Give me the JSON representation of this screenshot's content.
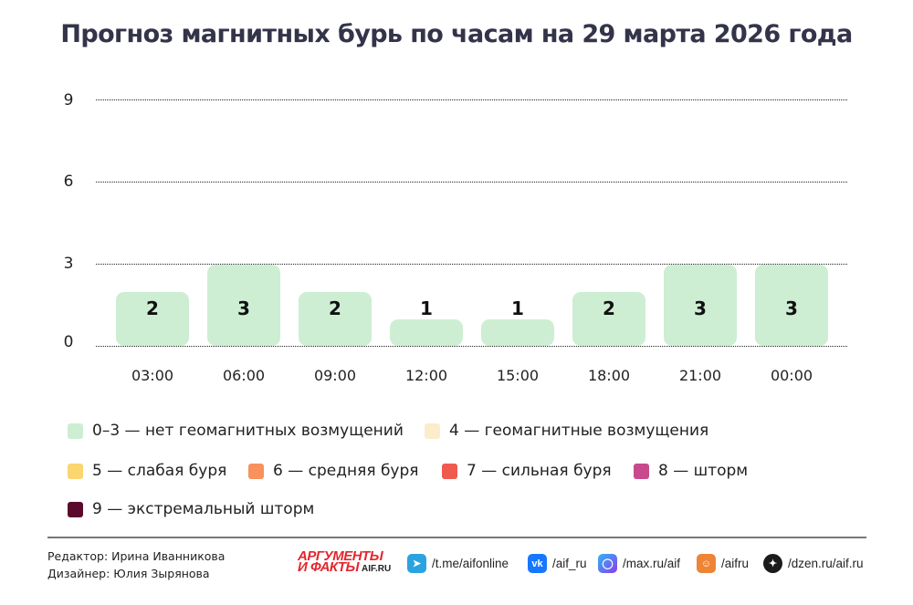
{
  "title": "Прогноз магнитных бурь по часам на 29 марта 2026 года",
  "chart_data": {
    "type": "bar",
    "title": "Прогноз магнитных бурь по часам на 29 марта 2026 года",
    "categories": [
      "03:00",
      "06:00",
      "09:00",
      "12:00",
      "15:00",
      "18:00",
      "21:00",
      "00:00"
    ],
    "values": [
      2,
      3,
      2,
      1,
      1,
      2,
      3,
      3
    ],
    "xlabel": "",
    "ylabel": "",
    "ylim": [
      0,
      9
    ],
    "yticks": [
      "0",
      "3",
      "6",
      "9"
    ],
    "grid": true,
    "bar_color": "#cdeed2",
    "legend_position": "bottom",
    "legend": [
      {
        "label": "0–3 — нет геомагнитных возмущений",
        "color": "#cdeed2"
      },
      {
        "label": "4 — геомагнитные возмущения",
        "color": "#fbeccb"
      },
      {
        "label": "5 — слабая буря",
        "color": "#fbd56e"
      },
      {
        "label": "6 — средняя буря",
        "color": "#f8915c"
      },
      {
        "label": "7 — сильная буря",
        "color": "#ef5b4e"
      },
      {
        "label": "8 — шторм",
        "color": "#c84a8c"
      },
      {
        "label": "9 — экстремальный шторм",
        "color": "#5a0a2c"
      }
    ]
  },
  "credits": {
    "editor": "Редактор: Ирина Иванникова",
    "designer": "Дизайнер: Юлия Зырянова"
  },
  "logo": {
    "line1": "АРГУМЕНТЫ",
    "line2": "И ФАКТЫ",
    "site": "AIF.RU"
  },
  "social": [
    {
      "icon": "telegram-icon",
      "label": "/t.me/aifonline",
      "color": "#2aa3e0"
    },
    {
      "icon": "vk-icon",
      "label": "/aif_ru",
      "color": "#1677ff"
    },
    {
      "icon": "max-icon",
      "label": "/max.ru/aif",
      "color": "#5b4cf0"
    },
    {
      "icon": "odnoklassniki-icon",
      "label": "/aifru",
      "color": "#ee8436"
    },
    {
      "icon": "dzen-icon",
      "label": "/dzen.ru/aif.ru",
      "color": "#1b1b1b"
    }
  ]
}
